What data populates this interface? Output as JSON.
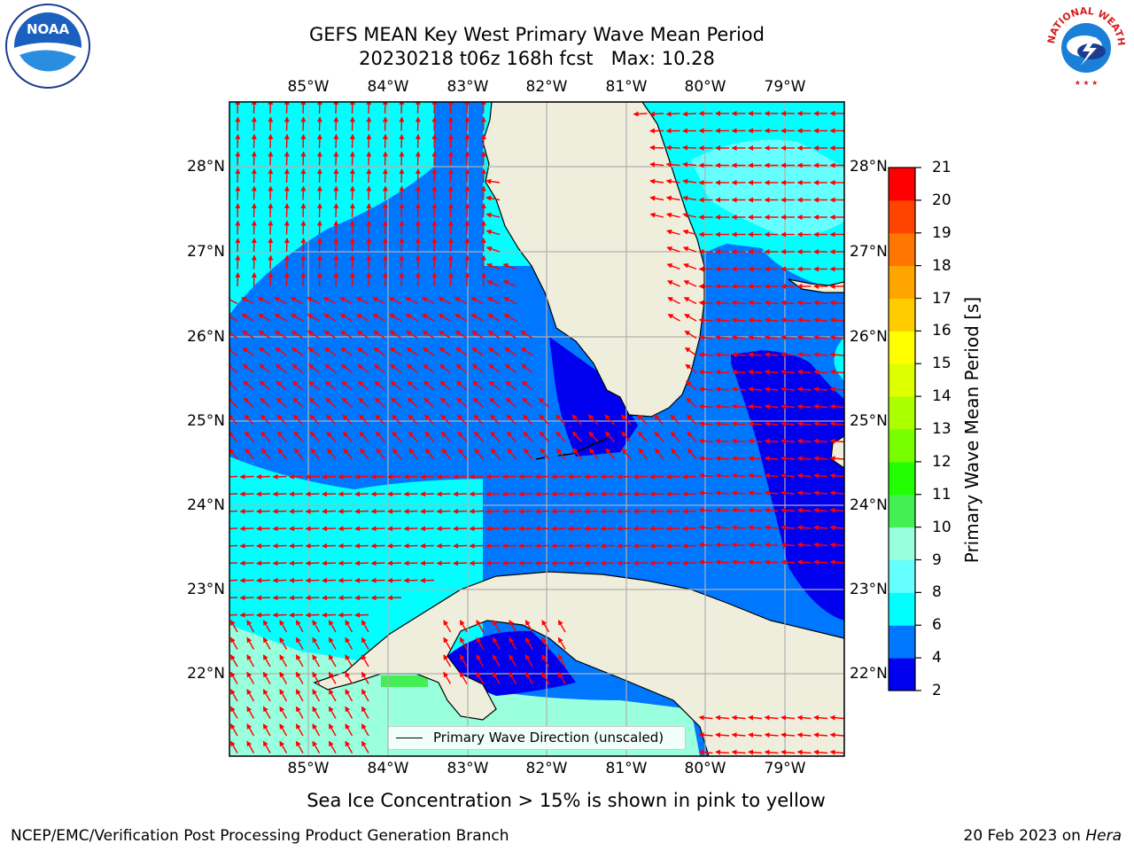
{
  "title_line1": "GEFS MEAN Key West Primary Wave Mean Period",
  "title_line2": "20230218 t06z 168h fcst   Max: 10.28",
  "lon_ticks": [
    "85°W",
    "84°W",
    "83°W",
    "82°W",
    "81°W",
    "80°W",
    "79°W"
  ],
  "lat_ticks": [
    "28°N",
    "27°N",
    "26°N",
    "25°N",
    "24°N",
    "23°N",
    "22°N"
  ],
  "colorbar": {
    "title": "Primary Wave Mean Period [s]",
    "levels": [
      "2",
      "4",
      "6",
      "8",
      "9",
      "10",
      "11",
      "12",
      "13",
      "14",
      "15",
      "16",
      "17",
      "18",
      "19",
      "20",
      "21"
    ],
    "colors": [
      "#0000ee",
      "#0077ff",
      "#00ffff",
      "#66ffff",
      "#99ffdd",
      "#44ee55",
      "#22ff00",
      "#77ff00",
      "#aaff00",
      "#ddff00",
      "#ffff00",
      "#ffcc00",
      "#ffa500",
      "#ff7700",
      "#ff4400",
      "#ff0000"
    ]
  },
  "legend_text": "Primary Wave Direction (unscaled)",
  "note": "Sea Ice Concentration > 15% is shown in pink to yellow",
  "footer_left": "NCEP/EMC/Verification Post Processing Product Generation Branch",
  "footer_right_date": "20 Feb 2023 on ",
  "footer_right_host": "Hera",
  "colors": {
    "land": "#efeedc",
    "arrow": "#ff0000",
    "grid": "#b0b0b0"
  },
  "logo_noaa_text": "NOAA",
  "logo_nws_text": "NATIONAL WEATHER SERVICE"
}
